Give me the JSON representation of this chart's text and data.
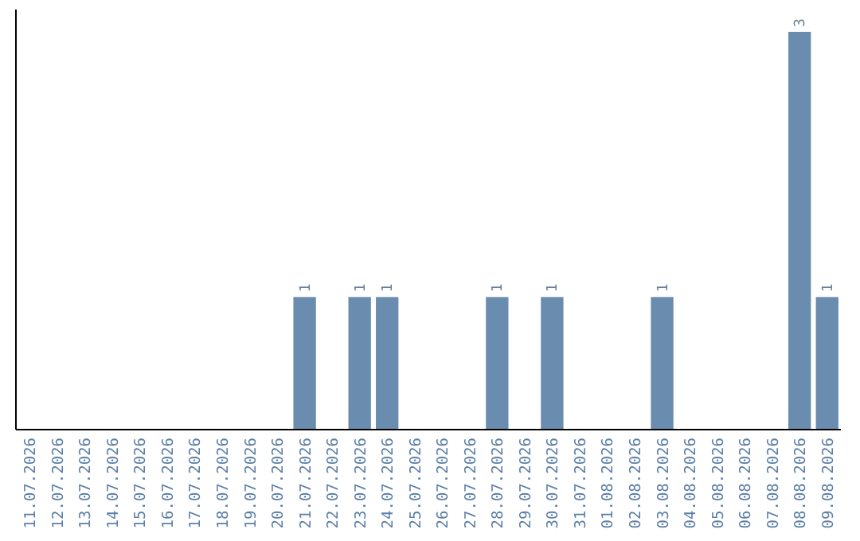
{
  "chart_data": {
    "type": "bar",
    "categories": [
      "11.07.2026",
      "12.07.2026",
      "13.07.2026",
      "14.07.2026",
      "15.07.2026",
      "16.07.2026",
      "17.07.2026",
      "18.07.2026",
      "19.07.2026",
      "20.07.2026",
      "21.07.2026",
      "22.07.2026",
      "23.07.2026",
      "24.07.2026",
      "25.07.2026",
      "26.07.2026",
      "27.07.2026",
      "28.07.2026",
      "29.07.2026",
      "30.07.2026",
      "31.07.2026",
      "01.08.2026",
      "02.08.2026",
      "03.08.2026",
      "04.08.2026",
      "05.08.2026",
      "06.08.2026",
      "07.08.2026",
      "08.08.2026",
      "09.08.2026"
    ],
    "values": [
      0,
      0,
      0,
      0,
      0,
      0,
      0,
      0,
      0,
      0,
      1,
      0,
      1,
      1,
      0,
      0,
      0,
      1,
      0,
      1,
      0,
      0,
      0,
      1,
      0,
      0,
      0,
      0,
      3,
      1
    ],
    "value_labels": [
      null,
      null,
      null,
      null,
      null,
      null,
      null,
      null,
      null,
      null,
      "1",
      null,
      "1",
      "1",
      null,
      null,
      null,
      "1",
      null,
      "1",
      null,
      null,
      null,
      "1",
      null,
      null,
      null,
      null,
      "3",
      "1"
    ],
    "color": "#6a8caf"
  }
}
